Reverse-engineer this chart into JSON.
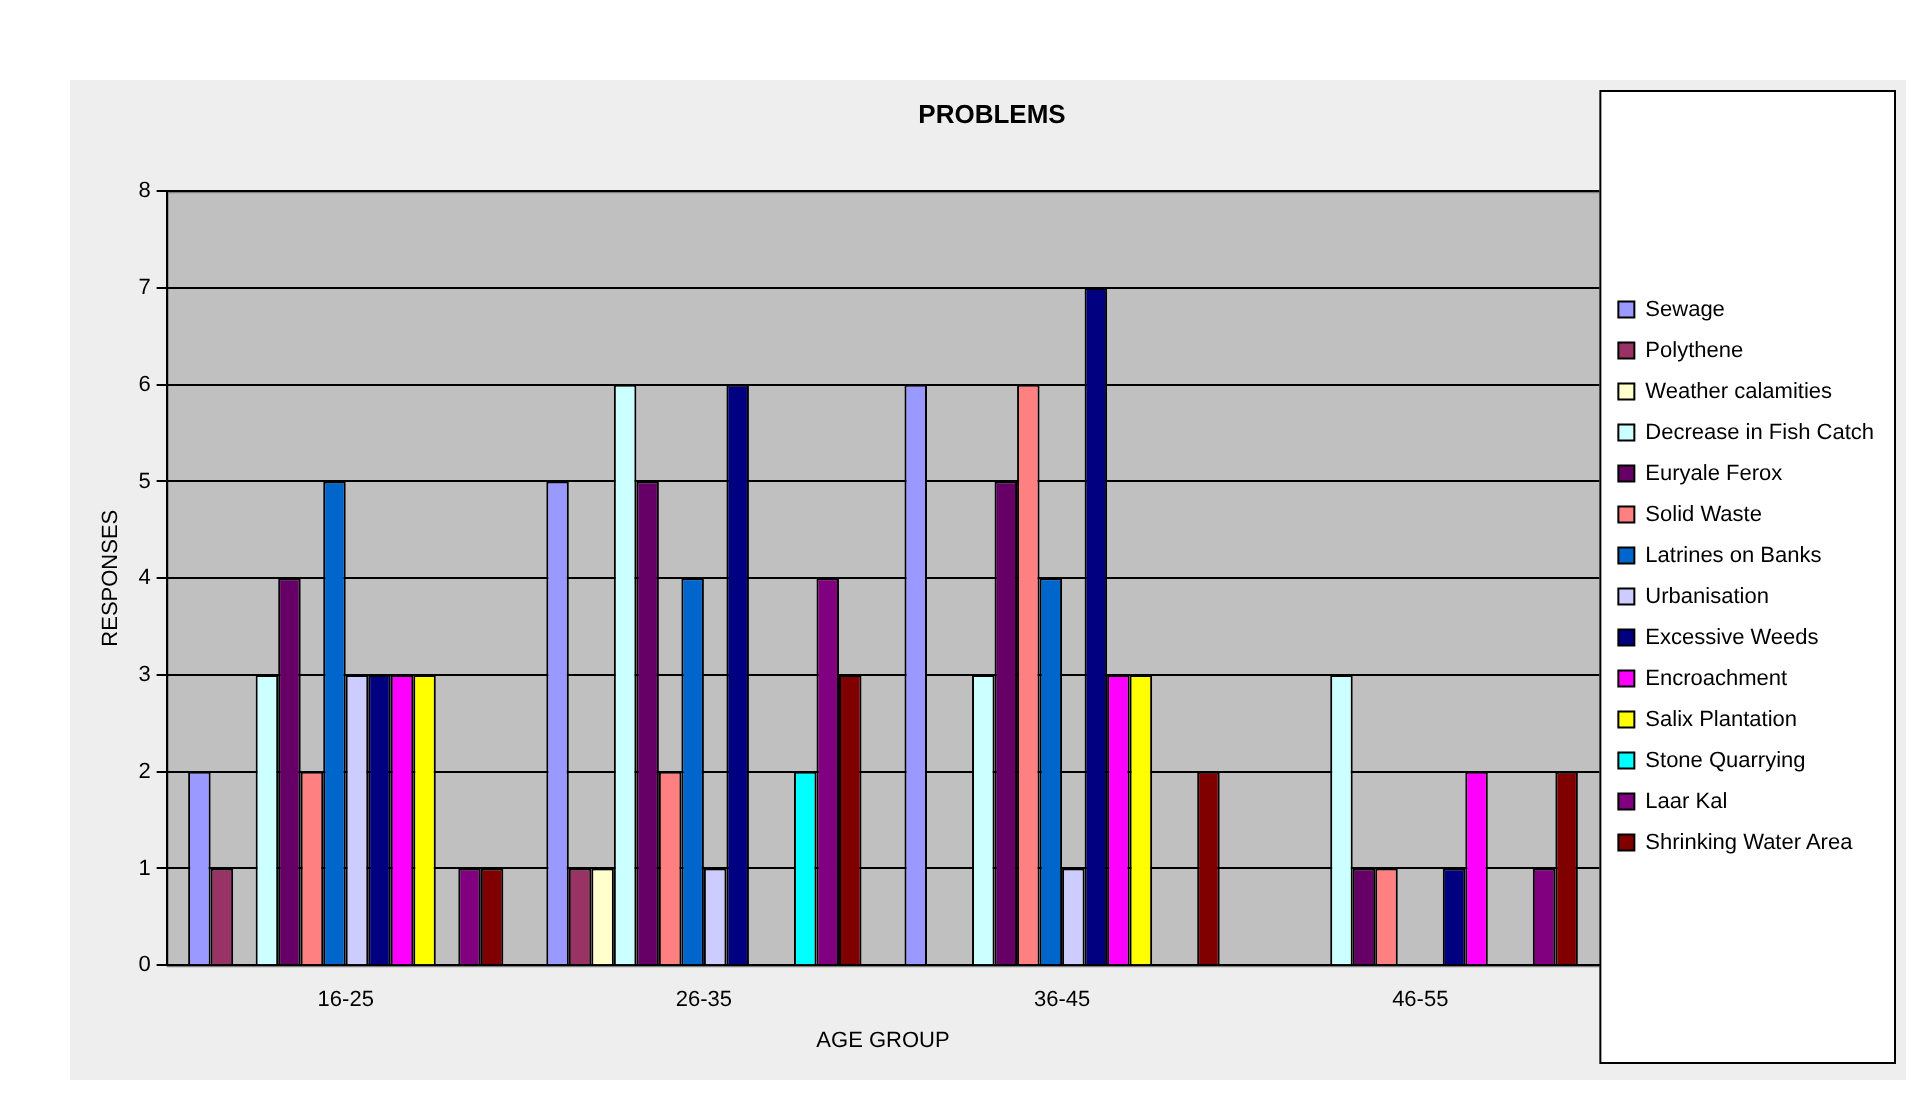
{
  "chart_data": {
    "type": "bar",
    "title": "PROBLEMS",
    "xlabel": "AGE GROUP",
    "ylabel": "RESPONSES",
    "categories": [
      "16-25",
      "26-35",
      "36-45",
      "46-55"
    ],
    "series": [
      {
        "name": "Sewage",
        "color": "#9999ff",
        "values": [
          2,
          5,
          6,
          0
        ]
      },
      {
        "name": "Polythene",
        "color": "#993366",
        "values": [
          1,
          1,
          0,
          0
        ]
      },
      {
        "name": "Weather calamities",
        "color": "#ffffcc",
        "values": [
          0,
          1,
          0,
          0
        ]
      },
      {
        "name": "Decrease in Fish Catch",
        "color": "#ccffff",
        "values": [
          3,
          6,
          3,
          3
        ]
      },
      {
        "name": "Euryale Ferox",
        "color": "#660066",
        "values": [
          4,
          5,
          5,
          1
        ]
      },
      {
        "name": "Solid Waste",
        "color": "#ff8080",
        "values": [
          2,
          2,
          6,
          1
        ]
      },
      {
        "name": "Latrines on Banks",
        "color": "#0066cc",
        "values": [
          5,
          4,
          4,
          0
        ]
      },
      {
        "name": "Urbanisation",
        "color": "#ccccff",
        "values": [
          3,
          1,
          1,
          0
        ]
      },
      {
        "name": "Excessive Weeds",
        "color": "#000080",
        "values": [
          3,
          6,
          7,
          1
        ]
      },
      {
        "name": "Encroachment",
        "color": "#ff00ff",
        "values": [
          3,
          0,
          3,
          2
        ]
      },
      {
        "name": "Salix Plantation",
        "color": "#ffff00",
        "values": [
          3,
          0,
          3,
          0
        ]
      },
      {
        "name": "Stone Quarrying",
        "color": "#00ffff",
        "values": [
          0,
          2,
          0,
          0
        ]
      },
      {
        "name": "Laar Kal",
        "color": "#800080",
        "values": [
          1,
          4,
          0,
          1
        ]
      },
      {
        "name": "Shrinking Water Area",
        "color": "#800000",
        "values": [
          1,
          3,
          2,
          2
        ]
      }
    ],
    "ylim": [
      0,
      8
    ],
    "yticks": [
      0,
      1,
      2,
      3,
      4,
      5,
      6,
      7,
      8
    ],
    "grid": "y",
    "legend": "right"
  }
}
